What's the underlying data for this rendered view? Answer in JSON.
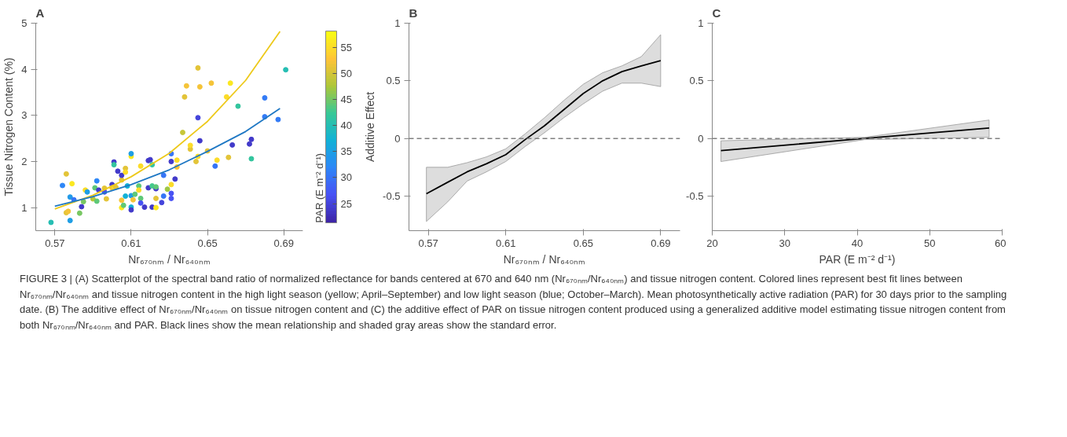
{
  "chart_data": [
    {
      "type": "scatter",
      "title": "A",
      "xlabel": "Nr₆₇₀ₙₘ / Nr₆₄₀ₙₘ",
      "ylabel": "Tissue Nitrogen Content (%)",
      "clabel": "PAR (E m⁻² d⁻¹)",
      "xlim": [
        0.56,
        0.7
      ],
      "xticks": [
        0.57,
        0.61,
        0.65,
        0.69
      ],
      "ylim": [
        0.5,
        5
      ],
      "yticks": [
        1,
        2,
        3,
        4,
        5
      ],
      "clim": [
        21.3,
        58.2
      ],
      "cticks": [
        25,
        30,
        35,
        40,
        45,
        50,
        55
      ],
      "series": [
        {
          "type": "scatter",
          "x": [
            0.568,
            0.574,
            0.576,
            0.578,
            0.578,
            0.576,
            0.577,
            0.579,
            0.58,
            0.583,
            0.584,
            0.585,
            0.586,
            0.587,
            0.59,
            0.591,
            0.592,
            0.592,
            0.593,
            0.596,
            0.597,
            0.596,
            0.6,
            0.601,
            0.601,
            0.6,
            0.601,
            0.602,
            0.603,
            0.605,
            0.605,
            0.605,
            0.605,
            0.606,
            0.607,
            0.607,
            0.607,
            0.608,
            0.61,
            0.61,
            0.61,
            0.61,
            0.61,
            0.611,
            0.612,
            0.614,
            0.614,
            0.615,
            0.615,
            0.615,
            0.617,
            0.619,
            0.619,
            0.62,
            0.621,
            0.621,
            0.621,
            0.623,
            0.623,
            0.623,
            0.623,
            0.626,
            0.627,
            0.627,
            0.629,
            0.631,
            0.631,
            0.631,
            0.631,
            0.631,
            0.633,
            0.634,
            0.634,
            0.637,
            0.638,
            0.639,
            0.641,
            0.641,
            0.644,
            0.645,
            0.645,
            0.645,
            0.646,
            0.646,
            0.65,
            0.652,
            0.654,
            0.655,
            0.66,
            0.661,
            0.662,
            0.663,
            0.666,
            0.672,
            0.673,
            0.673,
            0.68,
            0.68,
            0.687,
            0.691
          ],
          "values": [
            0.68,
            1.48,
            1.73,
            0.72,
            1.23,
            0.89,
            0.92,
            1.52,
            1.17,
            0.88,
            1.02,
            1.13,
            1.38,
            1.34,
            1.19,
            1.43,
            1.14,
            1.58,
            1.38,
            1.42,
            1.19,
            1.34,
            1.5,
            1.99,
            1.93,
            1.43,
            1.44,
            1.44,
            1.79,
            1.0,
            1.16,
            1.6,
            1.7,
            1.05,
            1.85,
            1.77,
            1.25,
            1.47,
            2.11,
            2.17,
            1.26,
            1.01,
            0.95,
            1.17,
            1.29,
            1.47,
            1.38,
            1.9,
            1.2,
            1.1,
            1.01,
            1.43,
            2.02,
            2.04,
            1.93,
            1.47,
            1.01,
            1.41,
            1.45,
            1.2,
            1.0,
            1.11,
            1.25,
            1.7,
            1.4,
            1.5,
            1.31,
            1.2,
            2.0,
            2.17,
            1.62,
            1.88,
            2.03,
            2.63,
            3.4,
            3.64,
            2.27,
            2.35,
            2.0,
            2.11,
            4.03,
            2.95,
            3.62,
            2.45,
            2.23,
            3.7,
            1.9,
            2.03,
            3.4,
            2.09,
            3.7,
            2.36,
            3.2,
            2.38,
            2.48,
            2.06,
            3.38,
            2.97,
            2.91,
            3.99
          ],
          "colors": [
            "#26beb3",
            "#2e87f7",
            "#e3c438",
            "#1e9ee5",
            "#219ae8",
            "#e3c438",
            "#f5c438",
            "#fbe820",
            "#3675f6",
            "#78c763",
            "#423aca",
            "#78c763",
            "#fcdc28",
            "#1e9ee5",
            "#b5c639",
            "#5ec878",
            "#5ec878",
            "#2e87f7",
            "#423aca",
            "#e3c438",
            "#e3c438",
            "#474dec",
            "#423aca",
            "#423aca",
            "#33c59e",
            "#f5c438",
            "#fcdc28",
            "#e3c438",
            "#423aca",
            "#fbe820",
            "#f5c438",
            "#e3c438",
            "#423aca",
            "#5ec878",
            "#e3c438",
            "#fcdc28",
            "#12b1d6",
            "#12b1d6",
            "#fbe820",
            "#1e9ee5",
            "#1e9ee5",
            "#12b1d6",
            "#423aca",
            "#f5c438",
            "#5ec878",
            "#5ec878",
            "#fcdc28",
            "#fcdc28",
            "#5ec878",
            "#4852f4",
            "#423aca",
            "#423aca",
            "#423aca",
            "#423aca",
            "#33c59e",
            "#44c88d",
            "#423aca",
            "#423aca",
            "#5ec878",
            "#e3c438",
            "#fbe820",
            "#4444db",
            "#3675f6",
            "#3675f6",
            "#9ec743",
            "#fcdc28",
            "#4852f4",
            "#4852f4",
            "#423aca",
            "#3675f6",
            "#423aca",
            "#fec338",
            "#fcdc28",
            "#c7c639",
            "#e3c438",
            "#f5c438",
            "#e3c438",
            "#fcdc28",
            "#e3c438",
            "#fcdc28",
            "#e3c438",
            "#4444db",
            "#f5c438",
            "#423aca",
            "#e3c438",
            "#f5c438",
            "#3675f6",
            "#fcdc28",
            "#fcdc28",
            "#e3c438",
            "#fbe820",
            "#423aca",
            "#33c59e",
            "#423aca",
            "#423aca",
            "#33c59e",
            "#337bf6",
            "#337bf6",
            "#337bf6",
            "#26beb3"
          ],
          "cvalues": [
            40,
            32,
            51,
            35,
            34,
            51,
            52,
            56,
            30,
            45,
            24,
            45,
            55,
            35,
            48,
            44,
            44,
            32,
            24,
            51,
            51,
            26,
            24,
            24,
            42,
            52,
            55,
            51,
            24,
            56,
            52,
            51,
            24,
            44,
            51,
            55,
            37,
            37,
            56,
            35,
            35,
            37,
            24,
            52,
            44,
            44,
            55,
            55,
            44,
            27,
            24,
            24,
            24,
            24,
            42,
            43,
            24,
            24,
            44,
            51,
            56,
            25,
            30,
            30,
            47,
            55,
            27,
            27,
            24,
            30,
            24,
            53,
            55,
            49,
            51,
            52,
            51,
            55,
            51,
            55,
            51,
            25,
            52,
            24,
            51,
            52,
            30,
            55,
            55,
            51,
            56,
            24,
            42,
            24,
            24,
            42,
            31,
            31,
            31,
            40
          ]
        },
        {
          "type": "line",
          "color": "#edc91a",
          "x": [
            0.57,
            0.59,
            0.61,
            0.63,
            0.65,
            0.67,
            0.688
          ],
          "values": [
            0.97,
            1.27,
            1.67,
            2.18,
            2.87,
            3.76,
            4.82
          ]
        },
        {
          "type": "line",
          "color": "#1f78c4",
          "x": [
            0.57,
            0.59,
            0.61,
            0.63,
            0.65,
            0.67,
            0.688
          ],
          "values": [
            1.03,
            1.24,
            1.5,
            1.82,
            2.22,
            2.65,
            3.15
          ]
        }
      ],
      "annotations": [
        "FIGURE 3 | (A) Scatterplot of the spectral band ratio of normalized reflectance for bands centered at 670 and 640 nm (Nr₆₇₀ₙₘ/Nr₆₄₀ₙₘ) and tissue nitrogen content. Colored lines represent best fit lines between Nr₆₇₀ₙₘ/Nr₆₄₀ₙₘ and tissue nitrogen content in the high light season (yellow; April–September) and low light season (blue; October–March). Mean photosynthetically active radiation (PAR) for 30 days prior to the sampling date. (B) The additive effect of Nr₆₇₀ₙₘ/Nr₆₄₀ₙₘ on tissue nitrogen content and (C) the additive effect of PAR on tissue nitrogen content produced using a generalized additive model estimating tissue nitrogen content from both Nr₆₇₀ₙₘ/Nr₆₄₀ₙₘ and PAR. Black lines show the mean relationship and shaded gray areas show the standard error."
      ]
    },
    {
      "type": "line",
      "title": "B",
      "xlabel": "Nr₆₇₀ₙₘ / Nr₆₄₀ₙₘ",
      "ylabel": "Additive Effect",
      "xlim": [
        0.56,
        0.7
      ],
      "xticks": [
        0.57,
        0.61,
        0.65,
        0.69
      ],
      "ylim": [
        -0.8,
        1
      ],
      "yticks": [
        -0.5,
        0,
        0.5,
        1
      ],
      "series": [
        {
          "color": "#000000",
          "x": [
            0.569,
            0.58,
            0.59,
            0.6,
            0.61,
            0.62,
            0.63,
            0.64,
            0.65,
            0.66,
            0.67,
            0.68,
            0.69
          ],
          "values": [
            -0.48,
            -0.38,
            -0.29,
            -0.22,
            -0.14,
            -0.01,
            0.11,
            0.25,
            0.39,
            0.5,
            0.58,
            0.63,
            0.675
          ],
          "lower": [
            -0.72,
            -0.55,
            -0.37,
            -0.29,
            -0.2,
            -0.07,
            0.05,
            0.18,
            0.3,
            0.41,
            0.48,
            0.48,
            0.45
          ],
          "upper": [
            -0.25,
            -0.25,
            -0.21,
            -0.16,
            -0.09,
            0.04,
            0.18,
            0.33,
            0.47,
            0.57,
            0.63,
            0.71,
            0.9
          ]
        }
      ],
      "ref_lines": [
        {
          "axis": "y",
          "value": 0,
          "color": "#808080",
          "line_style": "dashed"
        }
      ]
    },
    {
      "type": "line",
      "title": "C",
      "xlabel": "PAR (E m⁻² d⁻¹)",
      "xlim": [
        20,
        60
      ],
      "xticks": [
        20,
        30,
        40,
        50,
        60
      ],
      "ylim": [
        -0.8,
        1
      ],
      "yticks": [
        -0.5,
        0,
        0.5,
        1
      ],
      "series": [
        {
          "color": "#000000",
          "x": [
            21.2,
            41,
            58.2
          ],
          "values": [
            -0.105,
            0,
            0.09
          ],
          "lower": [
            -0.2,
            -0.01,
            0.01
          ],
          "upper": [
            -0.02,
            0.01,
            0.16
          ]
        }
      ],
      "ref_lines": [
        {
          "axis": "y",
          "value": 0,
          "color": "#808080",
          "line_style": "dashed"
        }
      ]
    }
  ]
}
